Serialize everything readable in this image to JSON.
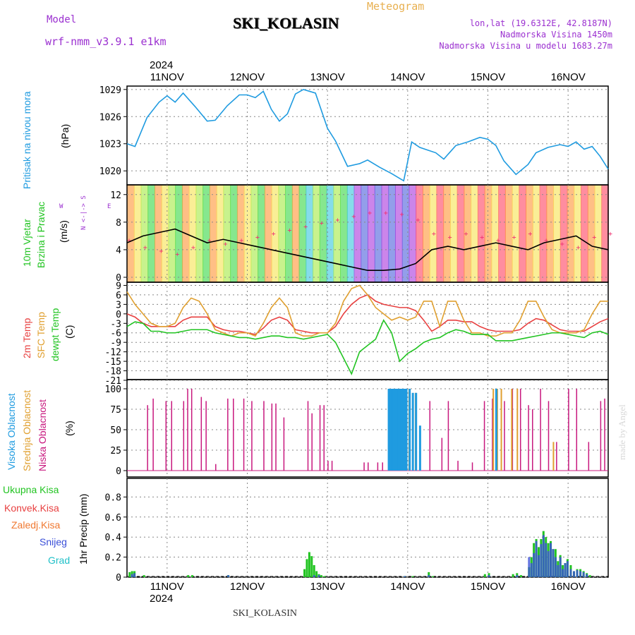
{
  "header": {
    "model_label": "Model",
    "model_name": "wrf-nmm_v3.9.1 e1km",
    "station": "SKI_KOLASIN",
    "meteogram_label": "Meteogram",
    "lonlat": "lon,lat (19.6312E, 42.8187N)",
    "elevation": "Nadmorska Visina 1450m",
    "model_elevation": "Nadmorska Visina u modelu 1683.27m",
    "year": "2024",
    "footer_station": "SKI_KOLASIN",
    "credit": "made by Angel"
  },
  "colors": {
    "pressure": "#1f9be0",
    "temp2m": "#e84040",
    "sfc": "#e0a030",
    "dewpt": "#22c422",
    "high_cloud": "#1f9be0",
    "mid_cloud": "#e0a030",
    "low_cloud": "#c8187e",
    "total_precip": "#22c422",
    "convective": "#e84040",
    "freezing": "#f07830",
    "snow": "#3a4fd8",
    "graupel": "#20c0c8",
    "speed_line": "#000000",
    "direction_marks": "#f03070",
    "title_purple": "#9b30d0",
    "meteogram_orange": "#e8b050"
  },
  "chart_data": [
    {
      "id": "pressure",
      "type": "line",
      "title": "",
      "ylabel_left": "Pritisak na nivou mora",
      "ylabel_unit": "(hPa)",
      "yticks": [
        "1029",
        "1026",
        "1023",
        "1020"
      ],
      "ylim": [
        1019,
        1030
      ],
      "x_unit": "days since 2024-11-10 00:00",
      "x": [
        10.5,
        10.6,
        10.75,
        10.9,
        11.0,
        11.1,
        11.2,
        11.35,
        11.5,
        11.6,
        11.75,
        11.9,
        12.0,
        12.1,
        12.2,
        12.3,
        12.4,
        12.5,
        12.6,
        12.7,
        12.85,
        13.0,
        13.1,
        13.25,
        13.4,
        13.5,
        13.65,
        13.8,
        13.95,
        14.05,
        14.15,
        14.25,
        14.35,
        14.45,
        14.6,
        14.75,
        14.9,
        15.0,
        15.1,
        15.2,
        15.35,
        15.5,
        15.6,
        15.75,
        15.9,
        16.0,
        16.1,
        16.2,
        16.3,
        16.4,
        16.5
      ],
      "values": [
        1023.0,
        1022.7,
        1025.9,
        1027.6,
        1028.3,
        1027.6,
        1028.6,
        1027.1,
        1025.5,
        1025.6,
        1027.2,
        1028.4,
        1028.4,
        1028.1,
        1028.8,
        1026.8,
        1025.5,
        1026.3,
        1028.5,
        1029.0,
        1028.6,
        1024.7,
        1023.3,
        1020.5,
        1020.8,
        1021.2,
        1020.4,
        1019.7,
        1018.9,
        1023.2,
        1022.6,
        1022.3,
        1022.0,
        1021.3,
        1022.8,
        1023.2,
        1023.7,
        1023.5,
        1022.8,
        1021.1,
        1019.6,
        1020.7,
        1022.0,
        1022.6,
        1022.9,
        1022.7,
        1023.2,
        1022.4,
        1022.7,
        1021.6,
        1020.2
      ],
      "grid": true
    },
    {
      "id": "wind",
      "type": "line",
      "title": "",
      "ylabel_left_1": "10m Vjetar",
      "ylabel_left_2": "Brzina i Pravac",
      "ylabel_unit": "(m/s)",
      "compass_ns": "N <-|-> S",
      "compass_w": "W",
      "compass_e": "E",
      "yticks": [
        "12",
        "8",
        "4",
        "0"
      ],
      "ylim": [
        0,
        13
      ],
      "x": [
        10.5,
        10.7,
        10.9,
        11.1,
        11.3,
        11.5,
        11.7,
        11.9,
        12.1,
        12.3,
        12.5,
        12.7,
        12.9,
        13.1,
        13.3,
        13.5,
        13.7,
        13.9,
        14.1,
        14.3,
        14.5,
        14.7,
        14.9,
        15.1,
        15.3,
        15.5,
        15.7,
        15.9,
        16.1,
        16.3,
        16.5
      ],
      "speed": [
        5.0,
        6.0,
        6.5,
        7.0,
        6.0,
        5.0,
        5.5,
        5.0,
        4.5,
        4.0,
        3.5,
        3.0,
        2.5,
        2.0,
        1.5,
        1.0,
        1.0,
        1.2,
        2.0,
        4.0,
        4.5,
        4.0,
        4.5,
        5.0,
        4.5,
        4.0,
        5.0,
        5.5,
        6.0,
        4.5,
        4.0
      ],
      "grid": true
    },
    {
      "id": "temperature",
      "type": "line",
      "title": "",
      "ylabel_left_1": "2m Temp",
      "ylabel_left_2": "SFC Temp",
      "ylabel_left_3": "dewpt Temp",
      "ylabel_unit": "(C)",
      "yticks": [
        "9",
        "6",
        "3",
        "0",
        "-3",
        "-6",
        "-9",
        "-12",
        "-15",
        "-18",
        "-21"
      ],
      "ylim": [
        -21,
        10
      ],
      "x": [
        10.5,
        10.6,
        10.7,
        10.8,
        10.9,
        11.0,
        11.1,
        11.2,
        11.3,
        11.4,
        11.5,
        11.6,
        11.7,
        11.8,
        11.9,
        12.0,
        12.1,
        12.2,
        12.3,
        12.4,
        12.5,
        12.6,
        12.7,
        12.8,
        12.9,
        13.0,
        13.1,
        13.2,
        13.3,
        13.4,
        13.5,
        13.6,
        13.7,
        13.8,
        13.9,
        14.0,
        14.1,
        14.2,
        14.3,
        14.4,
        14.5,
        14.6,
        14.7,
        14.8,
        14.9,
        15.0,
        15.1,
        15.2,
        15.3,
        15.4,
        15.5,
        15.6,
        15.7,
        15.8,
        15.9,
        16.0,
        16.1,
        16.2,
        16.3,
        16.4,
        16.5
      ],
      "series": [
        {
          "key": "temp2m",
          "values": [
            0.0,
            -1.0,
            -3.0,
            -4.0,
            -4.0,
            -4.0,
            -4.0,
            -2.0,
            -1.0,
            -1.0,
            -1.0,
            -4.0,
            -5.0,
            -5.5,
            -5.5,
            -6.0,
            -6.5,
            -4.5,
            -2.0,
            -1.0,
            -2.0,
            -5.0,
            -5.5,
            -6.0,
            -6.0,
            -6.0,
            -4.0,
            0.0,
            3.0,
            5.0,
            6.0,
            4.0,
            3.0,
            2.5,
            2.0,
            2.0,
            1.0,
            -2.0,
            -5.5,
            -4.0,
            -2.0,
            -2.0,
            -2.5,
            -2.5,
            -4.0,
            -5.0,
            -5.5,
            -5.5,
            -5.5,
            -5.0,
            -3.0,
            -1.5,
            -2.0,
            -3.5,
            -5.0,
            -5.5,
            -5.5,
            -5.5,
            -4.0,
            -2.5,
            -1.5
          ]
        },
        {
          "key": "sfc",
          "values": [
            7.0,
            3.0,
            0.0,
            -3.0,
            -4.0,
            -4.0,
            -3.0,
            2.0,
            5.0,
            4.0,
            0.0,
            -5.0,
            -6.0,
            -7.0,
            -6.0,
            -6.0,
            -7.0,
            -3.0,
            2.0,
            5.0,
            2.0,
            -6.0,
            -7.0,
            -7.0,
            -6.0,
            -6.0,
            -3.0,
            4.0,
            8.0,
            9.0,
            6.0,
            2.0,
            0.0,
            -2.0,
            -1.0,
            -2.0,
            -1.0,
            4.0,
            4.0,
            -4.0,
            4.0,
            4.0,
            -2.0,
            -6.0,
            -6.0,
            -7.0,
            -7.0,
            -6.0,
            -6.0,
            -2.0,
            4.0,
            4.0,
            -1.0,
            -5.0,
            -6.0,
            -6.0,
            -6.0,
            -5.0,
            0.0,
            4.0,
            4.0
          ]
        },
        {
          "key": "dewpt",
          "values": [
            -4.0,
            -2.5,
            -3.0,
            -5.5,
            -5.5,
            -6.0,
            -6.0,
            -5.5,
            -5.0,
            -5.0,
            -5.0,
            -6.0,
            -6.5,
            -7.0,
            -7.5,
            -7.5,
            -8.0,
            -7.5,
            -7.0,
            -7.0,
            -7.5,
            -7.5,
            -8.0,
            -7.5,
            -7.0,
            -6.5,
            -9.0,
            -14.0,
            -19.0,
            -12.0,
            -10.0,
            -8.0,
            -2.0,
            -6.0,
            -15.0,
            -12.5,
            -11.0,
            -9.0,
            -8.0,
            -7.5,
            -6.0,
            -5.0,
            -5.5,
            -6.5,
            -6.5,
            -6.5,
            -8.5,
            -8.5,
            -8.5,
            -8.0,
            -7.5,
            -7.0,
            -6.5,
            -6.0,
            -6.0,
            -6.5,
            -7.0,
            -7.5,
            -6.0,
            -5.5,
            -6.5
          ]
        }
      ],
      "grid": true
    },
    {
      "id": "clouds",
      "type": "bar",
      "title": "",
      "ylabel_left_1": "Visoka Oblacnost",
      "ylabel_left_2": "Srednja Oblacnost",
      "ylabel_left_3": "Niska Oblacnost",
      "ylabel_unit": "(%)",
      "yticks": [
        "100",
        "75",
        "50",
        "25",
        "0"
      ],
      "ylim": [
        0,
        100
      ],
      "low": [
        [
          10.75,
          80
        ],
        [
          10.82,
          88
        ],
        [
          10.98,
          85
        ],
        [
          11.05,
          85
        ],
        [
          11.2,
          85
        ],
        [
          11.25,
          100
        ],
        [
          11.3,
          100
        ],
        [
          11.42,
          90
        ],
        [
          11.48,
          85
        ],
        [
          11.6,
          8
        ],
        [
          11.75,
          88
        ],
        [
          11.82,
          88
        ],
        [
          11.95,
          88
        ],
        [
          12.05,
          85
        ],
        [
          12.2,
          85
        ],
        [
          12.3,
          82
        ],
        [
          12.35,
          82
        ],
        [
          12.45,
          65
        ],
        [
          12.75,
          85
        ],
        [
          12.8,
          70
        ],
        [
          12.9,
          80
        ],
        [
          12.95,
          80
        ],
        [
          13.0,
          12
        ],
        [
          13.05,
          12
        ],
        [
          13.45,
          10
        ],
        [
          13.5,
          10
        ],
        [
          13.62,
          10
        ],
        [
          13.68,
          10
        ],
        [
          14.27,
          85
        ],
        [
          14.42,
          40
        ],
        [
          14.5,
          85
        ],
        [
          14.62,
          12
        ],
        [
          14.8,
          10
        ],
        [
          14.95,
          85
        ],
        [
          15.05,
          88
        ],
        [
          15.1,
          100
        ],
        [
          15.2,
          85
        ],
        [
          15.3,
          100
        ],
        [
          15.4,
          100
        ],
        [
          15.5,
          80
        ],
        [
          15.55,
          75
        ],
        [
          15.65,
          100
        ],
        [
          15.75,
          85
        ],
        [
          15.85,
          35
        ],
        [
          16.0,
          100
        ],
        [
          16.1,
          100
        ],
        [
          16.25,
          35
        ],
        [
          16.4,
          85
        ],
        [
          16.45,
          88
        ]
      ],
      "mid": [
        [
          14.0,
          100
        ],
        [
          14.08,
          95
        ],
        [
          15.05,
          100
        ],
        [
          15.1,
          100
        ],
        [
          15.15,
          100
        ],
        [
          15.28,
          100
        ],
        [
          15.35,
          100
        ],
        [
          15.8,
          35
        ]
      ],
      "high": [
        [
          13.76,
          100
        ],
        [
          13.78,
          100
        ],
        [
          13.8,
          100
        ],
        [
          13.82,
          100
        ],
        [
          13.84,
          100
        ],
        [
          13.86,
          100
        ],
        [
          13.88,
          100
        ],
        [
          13.9,
          100
        ],
        [
          13.92,
          100
        ],
        [
          13.94,
          100
        ],
        [
          13.96,
          100
        ],
        [
          13.98,
          100
        ],
        [
          14.02,
          100
        ],
        [
          14.06,
          95
        ],
        [
          14.1,
          95
        ],
        [
          14.15,
          55
        ],
        [
          15.1,
          100
        ]
      ],
      "grid": true
    },
    {
      "id": "precip",
      "type": "bar",
      "title": "",
      "legend": [
        "Ukupna Kisa",
        "Konvek.Kisa",
        "Zaledj.Kisa",
        "Snijeg",
        "Grad"
      ],
      "ylabel_unit": "1hr Precip (mm)",
      "yticks": [
        "0.8",
        "0.6",
        "0.4",
        "0.2",
        "0"
      ],
      "ylim": [
        0,
        1.0
      ],
      "total": [
        [
          10.52,
          0.05
        ],
        [
          10.55,
          0.06
        ],
        [
          10.58,
          0.06
        ],
        [
          10.7,
          0.02
        ],
        [
          11.25,
          0.02
        ],
        [
          11.3,
          0.02
        ],
        [
          11.75,
          0.02
        ],
        [
          12.7,
          0.08
        ],
        [
          12.73,
          0.18
        ],
        [
          12.76,
          0.25
        ],
        [
          12.79,
          0.21
        ],
        [
          12.82,
          0.12
        ],
        [
          12.85,
          0.06
        ],
        [
          12.88,
          0.03
        ],
        [
          12.91,
          0.02
        ],
        [
          12.95,
          0.01
        ],
        [
          13.95,
          0.01
        ],
        [
          14.05,
          0.01
        ],
        [
          14.25,
          0.05
        ],
        [
          14.3,
          0.01
        ],
        [
          14.95,
          0.03
        ],
        [
          15.0,
          0.04
        ],
        [
          15.3,
          0.03
        ],
        [
          15.35,
          0.04
        ],
        [
          15.4,
          0.02
        ],
        [
          15.5,
          0.1
        ],
        [
          15.53,
          0.2
        ],
        [
          15.56,
          0.34
        ],
        [
          15.59,
          0.38
        ],
        [
          15.62,
          0.3
        ],
        [
          15.65,
          0.38
        ],
        [
          15.68,
          0.46
        ],
        [
          15.71,
          0.4
        ],
        [
          15.74,
          0.34
        ],
        [
          15.77,
          0.36
        ],
        [
          15.8,
          0.28
        ],
        [
          15.83,
          0.28
        ],
        [
          15.86,
          0.16
        ],
        [
          15.89,
          0.22
        ],
        [
          15.92,
          0.12
        ],
        [
          15.95,
          0.14
        ],
        [
          15.98,
          0.18
        ],
        [
          16.02,
          0.12
        ],
        [
          16.06,
          0.06
        ],
        [
          16.1,
          0.08
        ],
        [
          16.14,
          0.08
        ],
        [
          16.18,
          0.06
        ],
        [
          16.22,
          0.04
        ],
        [
          16.26,
          0.02
        ]
      ],
      "snow": [
        [
          10.55,
          0.03
        ],
        [
          10.58,
          0.04
        ],
        [
          11.75,
          0.02
        ],
        [
          12.82,
          0.02
        ],
        [
          12.88,
          0.02
        ],
        [
          13.95,
          0.01
        ],
        [
          14.25,
          0.02
        ],
        [
          15.0,
          0.02
        ],
        [
          15.35,
          0.02
        ],
        [
          15.5,
          0.2
        ],
        [
          15.53,
          0.14
        ],
        [
          15.56,
          0.24
        ],
        [
          15.59,
          0.36
        ],
        [
          15.62,
          0.22
        ],
        [
          15.65,
          0.33
        ],
        [
          15.68,
          0.42
        ],
        [
          15.71,
          0.34
        ],
        [
          15.74,
          0.26
        ],
        [
          15.77,
          0.34
        ],
        [
          15.8,
          0.28
        ],
        [
          15.83,
          0.2
        ],
        [
          15.86,
          0.12
        ],
        [
          15.89,
          0.2
        ],
        [
          15.92,
          0.08
        ],
        [
          15.95,
          0.14
        ],
        [
          15.98,
          0.16
        ],
        [
          16.02,
          0.08
        ],
        [
          16.06,
          0.06
        ],
        [
          16.1,
          0.07
        ],
        [
          16.14,
          0.06
        ],
        [
          16.18,
          0.05
        ],
        [
          16.22,
          0.03
        ]
      ],
      "grid": true
    }
  ],
  "x_axis": {
    "labels": [
      "11NOV",
      "12NOV",
      "13NOV",
      "14NOV",
      "15NOV",
      "16NOV"
    ],
    "positions": [
      11,
      12,
      13,
      14,
      15,
      16
    ],
    "range": [
      10.5,
      16.5
    ]
  }
}
